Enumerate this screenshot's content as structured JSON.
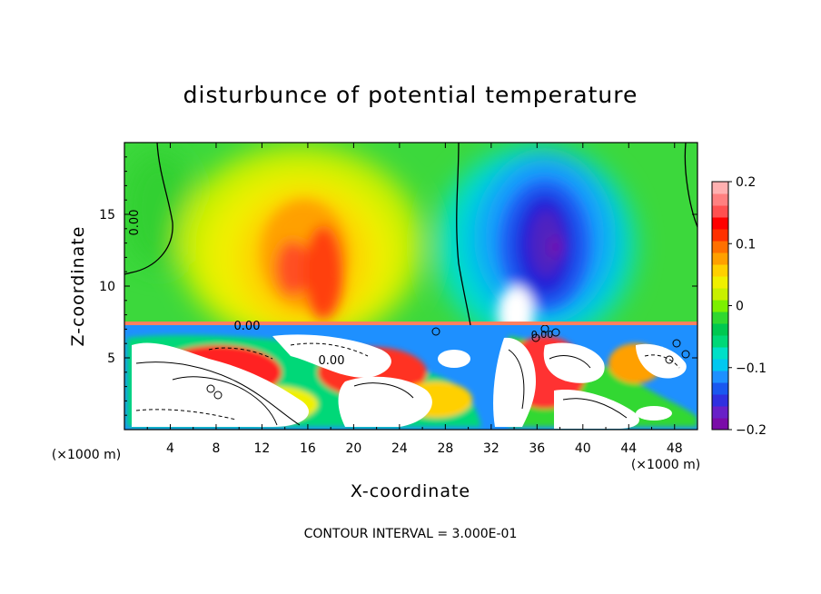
{
  "chart_data": {
    "type": "heatmap",
    "title": "disturbunce of potential temperature",
    "xlabel": "X-coordinate",
    "ylabel": "Z-coordinate",
    "x_unit_left": "(×1000 m)",
    "x_unit_right": "(×1000 m)",
    "xlim": [
      0,
      50
    ],
    "ylim": [
      0,
      20
    ],
    "x_ticks": [
      4,
      8,
      12,
      16,
      20,
      24,
      28,
      32,
      36,
      40,
      44,
      48
    ],
    "y_ticks": [
      5,
      10,
      15
    ],
    "colorbar": {
      "range": [
        -0.2,
        0.2
      ],
      "ticks": [
        0.2,
        0.1,
        0,
        -0.1,
        -0.2
      ],
      "tick_labels": [
        "0.2",
        "0.1",
        "0",
        "−0.1",
        "−0.2"
      ],
      "colors": [
        "#7a0ca8",
        "#6820c8",
        "#3030e0",
        "#1a58f0",
        "#1e90ff",
        "#00c8f0",
        "#00e0c8",
        "#00d878",
        "#00c850",
        "#30d830",
        "#7cf000",
        "#c8f000",
        "#f0f000",
        "#ffd000",
        "#ffa000",
        "#ff7000",
        "#ff3000",
        "#ff0000",
        "#ff5050",
        "#ff8080",
        "#ffb0b0"
      ]
    },
    "contour_labels": [
      "0.00",
      "0.00",
      "0.00",
      "0.00"
    ],
    "footer": "CONTOUR INTERVAL = 3.000E-01",
    "features": [
      {
        "name": "warm-anomaly-upper",
        "x": 16,
        "z": 11,
        "value": 0.15
      },
      {
        "name": "cold-anomaly-upper",
        "x": 37,
        "z": 13,
        "value": -0.18
      }
    ]
  }
}
